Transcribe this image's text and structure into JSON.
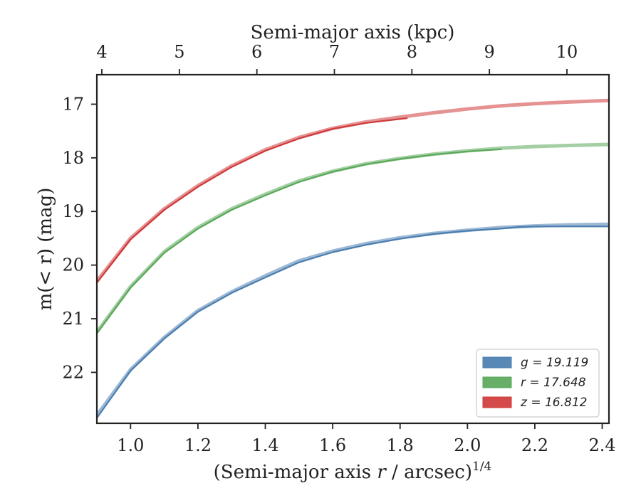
{
  "chart_data": {
    "type": "line",
    "xlabel_bottom": "(Semi-major axis r / arcsec)^{1/4}",
    "xlabel_top": "Semi-major axis (kpc)",
    "ylabel": "m(< r) (mag)",
    "xlim": [
      0.9,
      2.42
    ],
    "ylim": [
      22.95,
      16.45
    ],
    "y_inverted": true,
    "x_ticks": [
      "1.0",
      "1.2",
      "1.4",
      "1.6",
      "1.8",
      "2.0",
      "2.2",
      "2.4"
    ],
    "y_ticks": [
      "17",
      "18",
      "19",
      "20",
      "21",
      "22"
    ],
    "top_ticks": [
      "4",
      "5",
      "6",
      "7",
      "8",
      "9",
      "10"
    ],
    "legend_position": "lower-right",
    "series": [
      {
        "name": "g = 19.119",
        "color": "#4a7eb0",
        "model_x": [
          0.9,
          1.0,
          1.1,
          1.2,
          1.3,
          1.4,
          1.5,
          1.6,
          1.7,
          1.8,
          1.9,
          2.0,
          2.1,
          2.2,
          2.3,
          2.42
        ],
        "model_y": [
          22.8,
          21.95,
          21.35,
          20.85,
          20.5,
          20.2,
          19.92,
          19.74,
          19.6,
          19.49,
          19.41,
          19.35,
          19.3,
          19.27,
          19.25,
          19.24
        ],
        "data_x": [
          0.9,
          1.0,
          1.1,
          1.2,
          1.3,
          1.4,
          1.5,
          1.6,
          1.7,
          1.8,
          1.9,
          2.0,
          2.1,
          2.15,
          2.2,
          2.3,
          2.42
        ],
        "data_y": [
          22.85,
          21.97,
          21.37,
          20.87,
          20.52,
          20.23,
          19.95,
          19.76,
          19.62,
          19.51,
          19.42,
          19.36,
          19.32,
          19.29,
          19.28,
          19.28,
          19.28
        ]
      },
      {
        "name": "r = 17.648",
        "color": "#5aa85a",
        "model_x": [
          0.9,
          1.0,
          1.1,
          1.2,
          1.3,
          1.4,
          1.5,
          1.6,
          1.7,
          1.8,
          1.9,
          2.0,
          2.1,
          2.2,
          2.3,
          2.42
        ],
        "model_y": [
          21.25,
          20.4,
          19.75,
          19.3,
          18.95,
          18.68,
          18.43,
          18.25,
          18.11,
          18.01,
          17.93,
          17.87,
          17.82,
          17.79,
          17.77,
          17.75
        ],
        "data_x": [
          0.9,
          1.0,
          1.1,
          1.2,
          1.3,
          1.4,
          1.5,
          1.6,
          1.7,
          1.8,
          1.9,
          2.0,
          2.1
        ],
        "data_y": [
          21.27,
          20.42,
          19.77,
          19.32,
          18.97,
          18.7,
          18.45,
          18.26,
          18.12,
          18.02,
          17.94,
          17.88,
          17.84
        ]
      },
      {
        "name": "z = 16.812",
        "color": "#d0393b",
        "model_x": [
          0.9,
          1.0,
          1.1,
          1.2,
          1.3,
          1.4,
          1.5,
          1.6,
          1.7,
          1.8,
          1.9,
          2.0,
          2.1,
          2.2,
          2.3,
          2.42
        ],
        "model_y": [
          20.3,
          19.5,
          18.95,
          18.52,
          18.15,
          17.85,
          17.62,
          17.45,
          17.33,
          17.24,
          17.16,
          17.09,
          17.03,
          16.99,
          16.96,
          16.93
        ],
        "data_x": [
          0.9,
          1.0,
          1.1,
          1.2,
          1.3,
          1.4,
          1.5,
          1.6,
          1.7,
          1.82
        ],
        "data_y": [
          20.33,
          19.52,
          18.97,
          18.54,
          18.17,
          17.87,
          17.64,
          17.46,
          17.35,
          17.26
        ]
      }
    ]
  }
}
